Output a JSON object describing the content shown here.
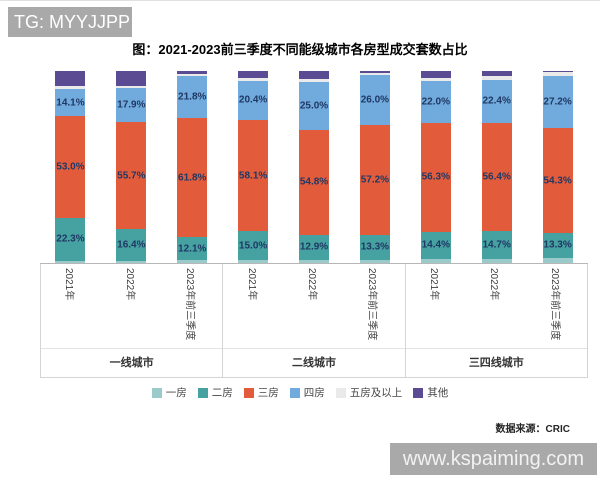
{
  "watermark_top": "TG: MYYJJPP",
  "watermark_bottom": "www.kspaiming.com",
  "source": "数据来源：CRIC",
  "colors": {
    "watermark_bg": "#a9a9a9",
    "data_label_text": "#1f3864",
    "axis_line": "#b7b7b7"
  },
  "chart_data": {
    "type": "bar",
    "stacked": true,
    "percent_stacked": true,
    "title": "图：2021-2023前三季度不同能级城市各房型成交套数占比",
    "groups": [
      "一线城市",
      "二线城市",
      "三四线城市"
    ],
    "categories": [
      "2021年",
      "2022年",
      "2023年前三季度"
    ],
    "ylim": [
      0,
      100
    ],
    "y_axis_visible": false,
    "legend_position": "bottom",
    "series": [
      {
        "name": "一房",
        "color": "#9bcaca",
        "show_labels": false,
        "values": [
          1.2,
          1.2,
          1.5,
          1.5,
          1.8,
          1.5,
          2.0,
          2.0,
          2.5
        ]
      },
      {
        "name": "二房",
        "color": "#46a1a1",
        "show_labels": true,
        "values": [
          22.3,
          16.4,
          12.1,
          15.0,
          12.9,
          13.3,
          14.4,
          14.7,
          13.3
        ]
      },
      {
        "name": "三房",
        "color": "#e25c3c",
        "show_labels": true,
        "values": [
          53.0,
          55.7,
          61.8,
          58.1,
          54.8,
          57.2,
          56.3,
          56.4,
          54.3
        ]
      },
      {
        "name": "四房",
        "color": "#71aadc",
        "show_labels": true,
        "values": [
          14.1,
          17.9,
          21.8,
          20.4,
          25.0,
          26.0,
          22.0,
          22.4,
          27.2
        ]
      },
      {
        "name": "五房及以上",
        "color": "#eaeaea",
        "show_labels": false,
        "values": [
          1.4,
          1.2,
          1.1,
          1.6,
          1.5,
          1.0,
          1.8,
          1.9,
          2.2
        ]
      },
      {
        "name": "其他",
        "color": "#5b4b92",
        "show_labels": false,
        "values": [
          8.0,
          7.6,
          1.7,
          3.4,
          4.0,
          1.0,
          3.5,
          2.6,
          0.5
        ]
      }
    ]
  }
}
